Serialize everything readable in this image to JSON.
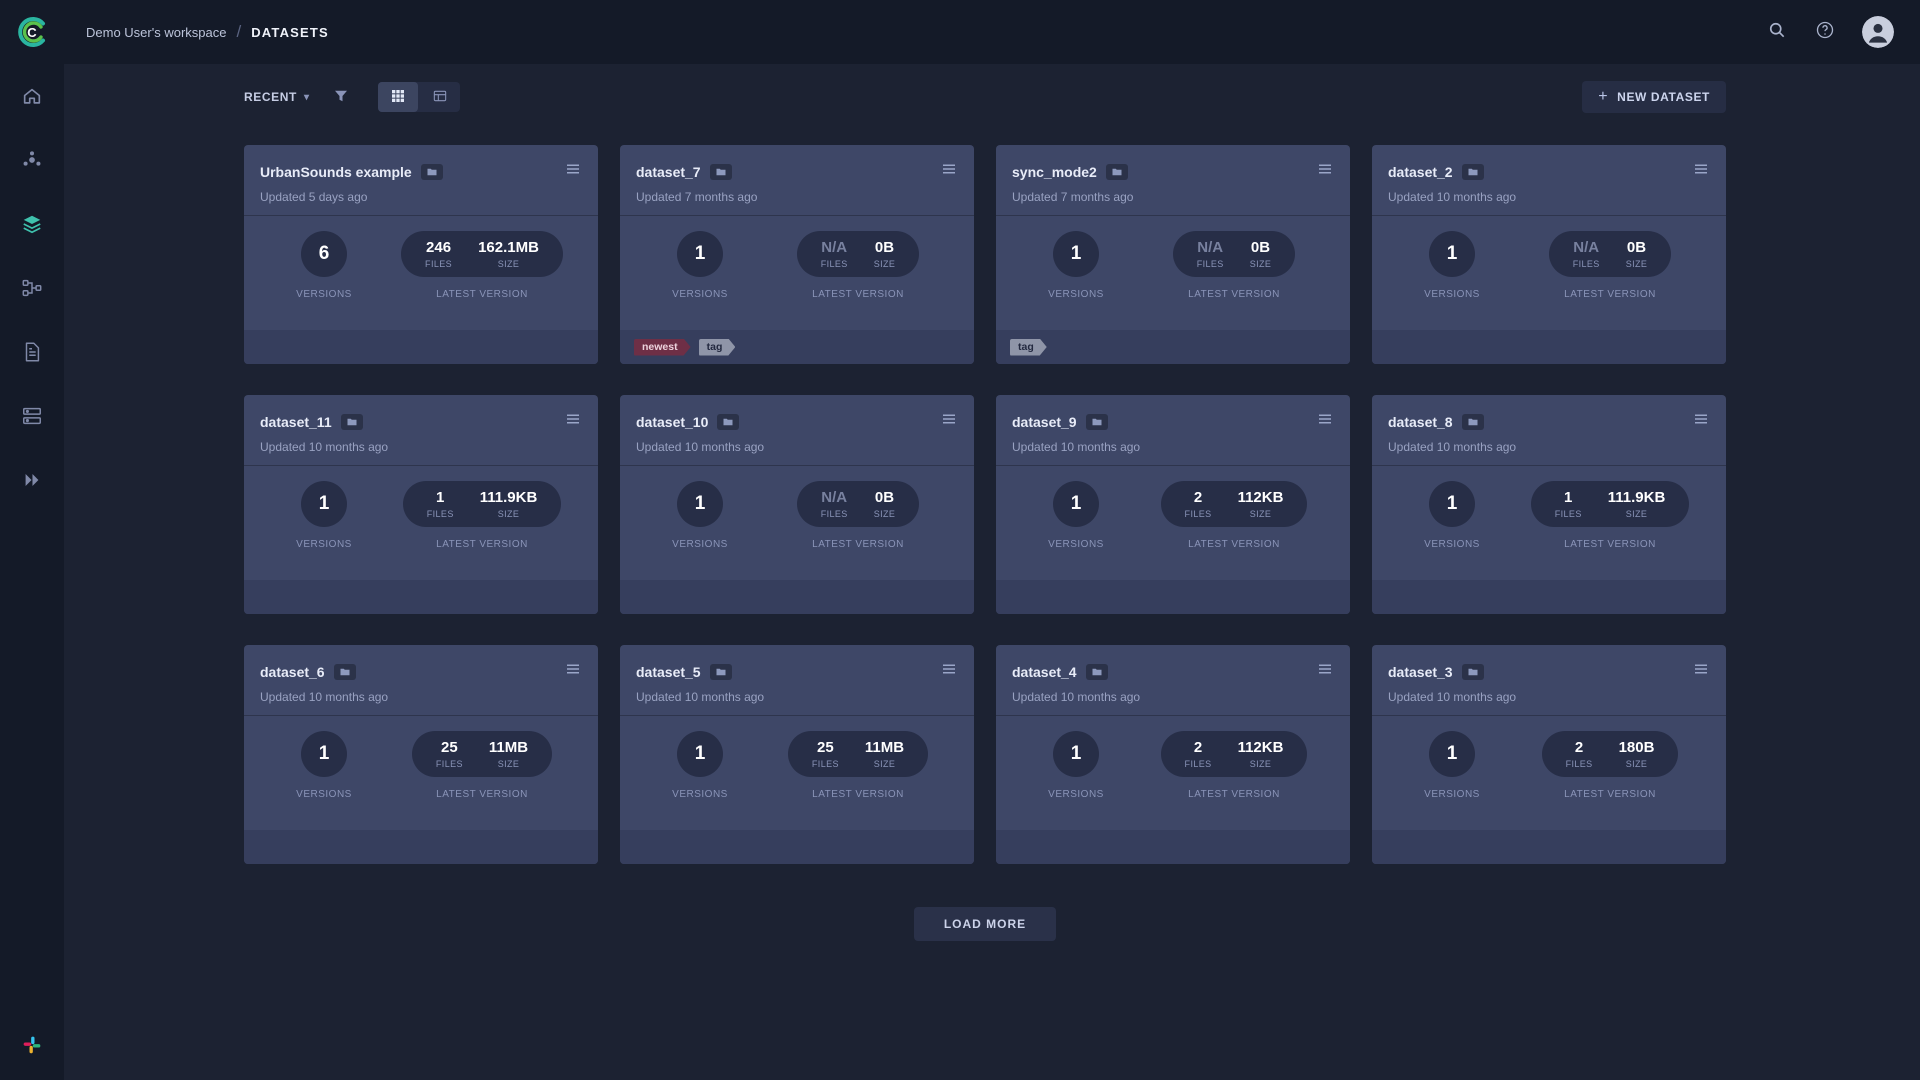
{
  "app": {
    "logo_letter": "C"
  },
  "header": {
    "workspace": "Demo User's workspace",
    "separator": "/",
    "page": "DATASETS",
    "icons": [
      "search",
      "help",
      "avatar"
    ]
  },
  "sidebar": {
    "icons": [
      "home",
      "projects",
      "datasets",
      "pipelines",
      "reports",
      "workers-queues",
      "applications"
    ],
    "active": "datasets",
    "bottom_icon": "slack"
  },
  "toolbar": {
    "sort": "RECENT",
    "view_modes": [
      "grid",
      "table"
    ],
    "active_view": "grid",
    "plus": "+",
    "new_dataset": "NEW DATASET"
  },
  "labels": {
    "versions": "VERSIONS",
    "files": "FILES",
    "size": "SIZE",
    "latest_version": "LATEST VERSION"
  },
  "load_more": "LOAD MORE",
  "colors": {
    "accent_teal": "#3fc1ad",
    "card_bg": "#3e4767",
    "tag_maroon": "#6e2f46",
    "tag_gray": "#8f95a8"
  },
  "cards": [
    {
      "title": "UrbanSounds example",
      "updated": "Updated 5 days ago",
      "versions": "6",
      "files": "246",
      "size": "162.1MB",
      "na": false,
      "tags": []
    },
    {
      "title": "dataset_7",
      "updated": "Updated 7 months ago",
      "versions": "1",
      "files": "N/A",
      "size": "0B",
      "na": true,
      "tags": [
        {
          "label": "newest",
          "type": "maroon"
        },
        {
          "label": "tag",
          "type": "gray"
        }
      ]
    },
    {
      "title": "sync_mode2",
      "updated": "Updated 7 months ago",
      "versions": "1",
      "files": "N/A",
      "size": "0B",
      "na": true,
      "tags": [
        {
          "label": "tag",
          "type": "gray"
        }
      ]
    },
    {
      "title": "dataset_2",
      "updated": "Updated 10 months ago",
      "versions": "1",
      "files": "N/A",
      "size": "0B",
      "na": true,
      "tags": []
    },
    {
      "title": "dataset_11",
      "updated": "Updated 10 months ago",
      "versions": "1",
      "files": "1",
      "size": "111.9KB",
      "na": false,
      "tags": []
    },
    {
      "title": "dataset_10",
      "updated": "Updated 10 months ago",
      "versions": "1",
      "files": "N/A",
      "size": "0B",
      "na": true,
      "tags": []
    },
    {
      "title": "dataset_9",
      "updated": "Updated 10 months ago",
      "versions": "1",
      "files": "2",
      "size": "112KB",
      "na": false,
      "tags": []
    },
    {
      "title": "dataset_8",
      "updated": "Updated 10 months ago",
      "versions": "1",
      "files": "1",
      "size": "111.9KB",
      "na": false,
      "tags": []
    },
    {
      "title": "dataset_6",
      "updated": "Updated 10 months ago",
      "versions": "1",
      "files": "25",
      "size": "11MB",
      "na": false,
      "tags": []
    },
    {
      "title": "dataset_5",
      "updated": "Updated 10 months ago",
      "versions": "1",
      "files": "25",
      "size": "11MB",
      "na": false,
      "tags": []
    },
    {
      "title": "dataset_4",
      "updated": "Updated 10 months ago",
      "versions": "1",
      "files": "2",
      "size": "112KB",
      "na": false,
      "tags": []
    },
    {
      "title": "dataset_3",
      "updated": "Updated 10 months ago",
      "versions": "1",
      "files": "2",
      "size": "180B",
      "na": false,
      "tags": []
    }
  ]
}
